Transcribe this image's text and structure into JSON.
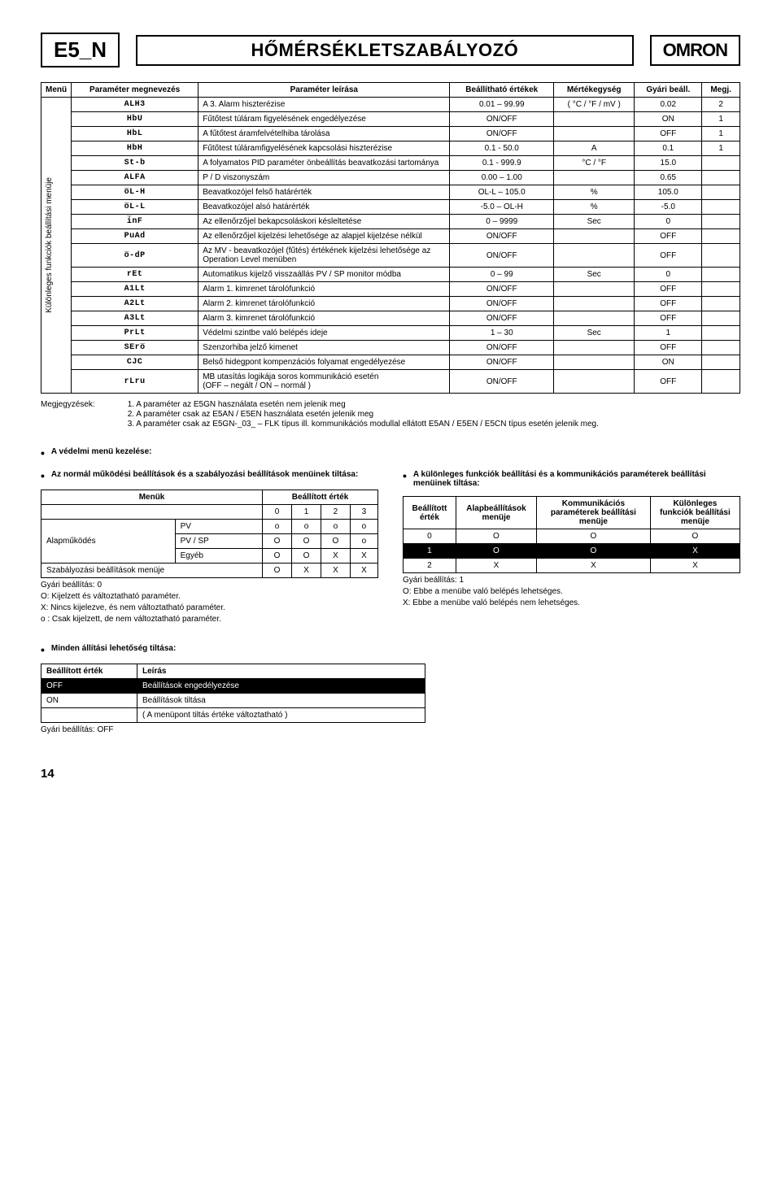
{
  "header": {
    "code": "E5_N",
    "title": "HŐMÉRSÉKLETSZABÁLYOZÓ",
    "brand": "OMRON"
  },
  "mainTable": {
    "sideLabel": "Különleges funkciók beállítási menüje",
    "headers": {
      "menu": "Menü",
      "param": "Paraméter megnevezés",
      "desc": "Paraméter leírása",
      "range": "Beállítható értékek",
      "unit": "Mértékegység",
      "factory": "Gyári beáll.",
      "note": "Megj."
    },
    "rows": [
      {
        "seg": "ALH3",
        "desc": "A 3. Alarm hiszterézise",
        "range": "0.01 – 99.99",
        "unit": "( °C / °F / mV )",
        "factory": "0.02",
        "note": "2"
      },
      {
        "seg": "HbU",
        "desc": "Fűtőtest túláram figyelésének engedélyezése",
        "range": "ON/OFF",
        "unit": "",
        "factory": "ON",
        "note": "1"
      },
      {
        "seg": "HbL",
        "desc": "A fűtőtest áramfelvételhiba tárolása",
        "range": "ON/OFF",
        "unit": "",
        "factory": "OFF",
        "note": "1"
      },
      {
        "seg": "HbH",
        "desc": "Fűtőtest túláramfigyelésének kapcsolási hiszterézise",
        "range": "0.1 - 50.0",
        "unit": "A",
        "factory": "0.1",
        "note": "1"
      },
      {
        "seg": "St-b",
        "desc": "A folyamatos PID paraméter önbeállítás beavatkozási tartománya",
        "range": "0.1 - 999.9",
        "unit": "°C / °F",
        "factory": "15.0",
        "note": ""
      },
      {
        "seg": "ALFA",
        "desc": "P / D viszonyszám",
        "range": "0.00 – 1.00",
        "unit": "",
        "factory": "0.65",
        "note": ""
      },
      {
        "seg": "o̅L-H",
        "desc": "Beavatkozójel felső határérték",
        "range": "OL-L – 105.0",
        "unit": "%",
        "factory": "105.0",
        "note": ""
      },
      {
        "seg": "o̅L-L",
        "desc": "Beavatkozójel alsó határérték",
        "range": "-5.0 – OL-H",
        "unit": "%",
        "factory": "-5.0",
        "note": ""
      },
      {
        "seg": "i̅nF",
        "desc": "Az ellenőrzőjel bekapcsoláskori késleltetése",
        "range": "0 – 9999",
        "unit": "Sec",
        "factory": "0",
        "note": ""
      },
      {
        "seg": "PuAd",
        "desc": "Az ellenőrzőjel kijelzési lehetősége az alapjel kijelzése nélkül",
        "range": "ON/OFF",
        "unit": "",
        "factory": "OFF",
        "note": ""
      },
      {
        "seg": "o̅-dP",
        "desc": "Az MV - beavatkozójel (fűtés) értékének kijelzési lehetősége az Operation Level menüben",
        "range": "ON/OFF",
        "unit": "",
        "factory": "OFF",
        "note": ""
      },
      {
        "seg": "rEt",
        "desc": "Automatikus kijelző visszaállás PV / SP monitor módba",
        "range": "0 – 99",
        "unit": "Sec",
        "factory": "0",
        "note": ""
      },
      {
        "seg": "A1Lt",
        "desc": "Alarm 1. kimrenet tárolófunkció",
        "range": "ON/OFF",
        "unit": "",
        "factory": "OFF",
        "note": ""
      },
      {
        "seg": "A2Lt",
        "desc": "Alarm 2. kimrenet tárolófunkció",
        "range": "ON/OFF",
        "unit": "",
        "factory": "OFF",
        "note": ""
      },
      {
        "seg": "A3Lt",
        "desc": "Alarm 3. kimrenet tárolófunkció",
        "range": "ON/OFF",
        "unit": "",
        "factory": "OFF",
        "note": ""
      },
      {
        "seg": "PrLt",
        "desc": "Védelmi szintbe való belépés ideje",
        "range": "1 – 30",
        "unit": "Sec",
        "factory": "1",
        "note": ""
      },
      {
        "seg": "SEro̅",
        "desc": "Szenzorhiba jelző kimenet",
        "range": "ON/OFF",
        "unit": "",
        "factory": "OFF",
        "note": ""
      },
      {
        "seg": "CJC",
        "desc": "Belső hidegpont kompenzációs folyamat engedélyezése",
        "range": "ON/OFF",
        "unit": "",
        "factory": "ON",
        "note": ""
      },
      {
        "seg": "rLru",
        "desc": "MB utasítás logikája soros kommunikáció esetén\n(OFF – negált / ON – normál )",
        "range": "ON/OFF",
        "unit": "",
        "factory": "OFF",
        "note": ""
      }
    ]
  },
  "notes": {
    "label": "Megjegyzések:",
    "lines": [
      "1. A paraméter az E5GN használata esetén nem jelenik meg",
      "2. A paraméter csak az E5AN / E5EN használata esetén jelenik meg",
      "3. A paraméter csak az E5GN-_03_ – FLK típus ill. kommunikációs modullal ellátott E5AN / E5EN / E5CN típus esetén jelenik meg."
    ]
  },
  "protect": {
    "title": "A védelmi menü kezelése:"
  },
  "leftBlock": {
    "title": "Az normál működési beállítások és a szabályozási beállítások menüinek tiltása:",
    "h_menus": "Menük",
    "h_val": "Beállított érték",
    "alap": "Alapműködés",
    "rows": {
      "pv": "PV",
      "pvsp": "PV / SP",
      "egyeb": "Egyéb",
      "szab": "Szabályozási beállítások menüje"
    },
    "cells": {
      "c0": "0",
      "c1": "1",
      "c2": "2",
      "c3": "3",
      "pv0": "o",
      "pv1": "o",
      "pv2": "o",
      "pv3": "o",
      "ps0": "O",
      "ps1": "O",
      "ps2": "O",
      "ps3": "o",
      "eg0": "O",
      "eg1": "O",
      "eg2": "X",
      "eg3": "X",
      "sz0": "O",
      "sz1": "X",
      "sz2": "X",
      "sz3": "X"
    },
    "footer": [
      "Gyári beállítás: 0",
      "O: Kijelzett és változtatható paraméter.",
      "X: Nincs kijelezve, és nem változtatható paraméter.",
      "o : Csak kijelzett, de nem változtatható paraméter."
    ]
  },
  "rightBlock": {
    "title": "A különleges funkciók beállítási és a kommunikációs paraméterek beállítási menüinek tiltása:",
    "headers": {
      "val": "Beállított érték",
      "alap": "Alapbeállítások menüje",
      "komm": "Kommunikációs paraméterek beállítási menüje",
      "kul": "Különleges funkciók beállítási menüje"
    },
    "cells": {
      "r0v": "0",
      "r0a": "O",
      "r0k": "O",
      "r0u": "O",
      "r1v": "1",
      "r1a": "O",
      "r1k": "O",
      "r1u": "X",
      "r2v": "2",
      "r2a": "X",
      "r2k": "X",
      "r2u": "X"
    },
    "footer": [
      "Gyári beállítás: 1",
      "O: Ebbe a menübe való belépés lehetséges.",
      "X: Ebbe a menübe való belépés nem lehetséges."
    ]
  },
  "disableAll": {
    "title": "Minden állítási lehetőség tiltása:",
    "headers": {
      "val": "Beállított érték",
      "desc": "Leírás"
    },
    "rows": {
      "off": "OFF",
      "offd": "Beállítások engedélyezése",
      "on": "ON",
      "ond": "Beállítások tiltása",
      "sub": "( A menüpont tiltás értéke változtatható )"
    },
    "footer": "Gyári beállítás: OFF"
  },
  "pageNum": "14"
}
